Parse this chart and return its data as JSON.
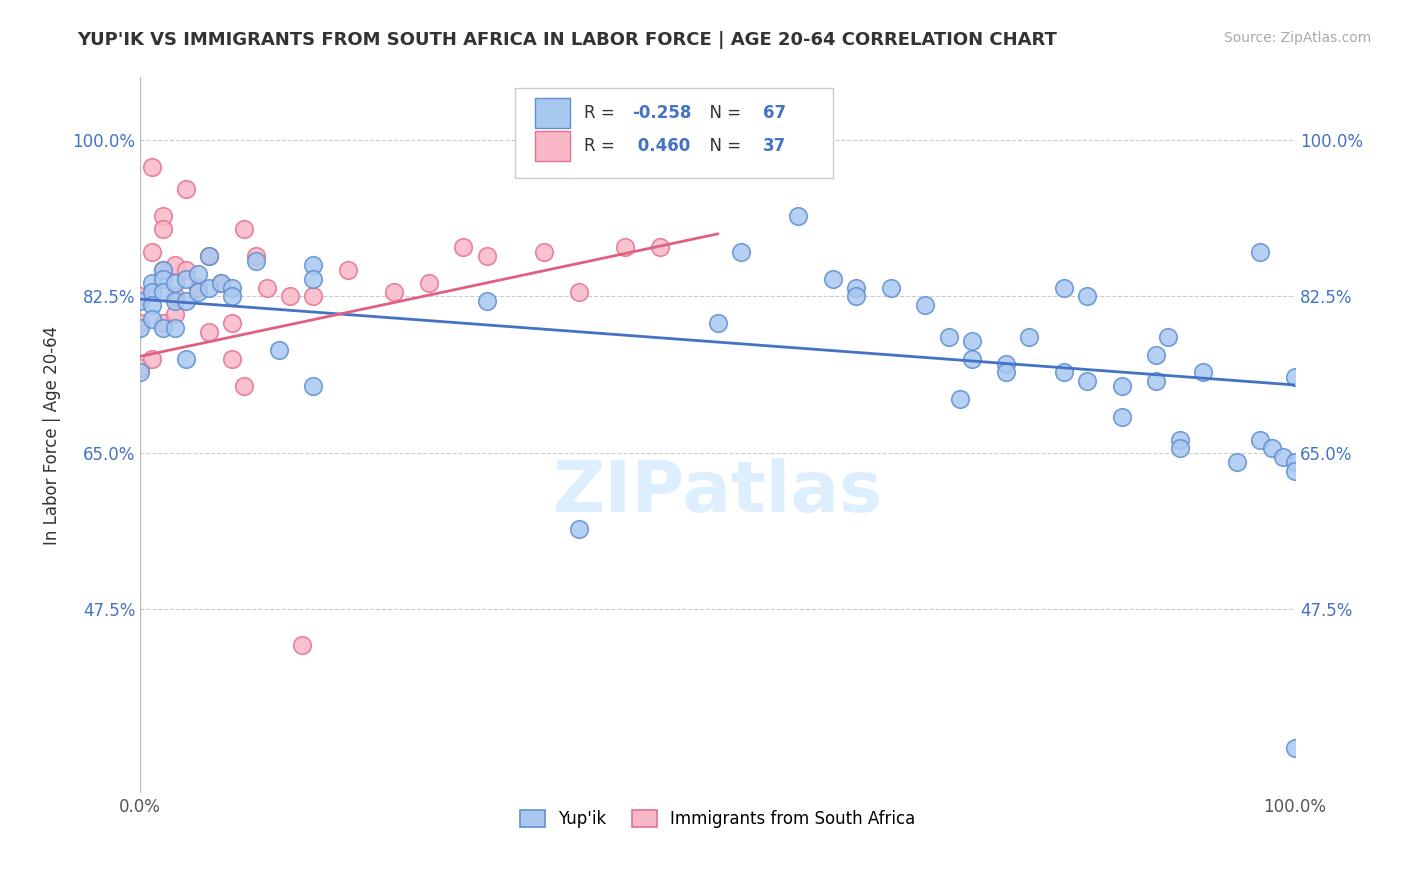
{
  "title": "YUP'IK VS IMMIGRANTS FROM SOUTH AFRICA IN LABOR FORCE | AGE 20-64 CORRELATION CHART",
  "source": "Source: ZipAtlas.com",
  "ylabel": "In Labor Force | Age 20-64",
  "xlim": [
    0.0,
    1.0
  ],
  "ylim": [
    0.27,
    1.07
  ],
  "yticks": [
    0.475,
    0.65,
    0.825,
    1.0
  ],
  "ytick_labels": [
    "47.5%",
    "65.0%",
    "82.5%",
    "100.0%"
  ],
  "xticks": [
    0.0,
    0.2,
    0.4,
    0.6,
    0.8,
    1.0
  ],
  "xtick_labels": [
    "0.0%",
    "",
    "",
    "",
    "",
    "100.0%"
  ],
  "blue_R": -0.258,
  "blue_N": 67,
  "pink_R": 0.46,
  "pink_N": 37,
  "blue_color": "#a8c8f0",
  "pink_color": "#f8b8c8",
  "blue_edge_color": "#6090d0",
  "pink_edge_color": "#e87090",
  "blue_line_color": "#4472c4",
  "pink_line_color": "#e06080",
  "watermark_color": "#ddeeff",
  "watermark": "ZIPatlas",
  "blue_scatter_x": [
    0.0,
    0.0,
    0.0,
    0.01,
    0.01,
    0.01,
    0.01,
    0.02,
    0.02,
    0.02,
    0.02,
    0.03,
    0.03,
    0.03,
    0.04,
    0.04,
    0.04,
    0.05,
    0.05,
    0.06,
    0.06,
    0.07,
    0.08,
    0.08,
    0.1,
    0.12,
    0.15,
    0.15,
    0.15,
    0.3,
    0.38,
    0.5,
    0.52,
    0.57,
    0.6,
    0.62,
    0.62,
    0.65,
    0.68,
    0.7,
    0.71,
    0.72,
    0.72,
    0.75,
    0.75,
    0.77,
    0.8,
    0.8,
    0.82,
    0.82,
    0.85,
    0.85,
    0.88,
    0.88,
    0.89,
    0.9,
    0.9,
    0.92,
    0.95,
    0.97,
    0.97,
    0.98,
    0.99,
    1.0,
    1.0,
    1.0,
    1.0
  ],
  "blue_scatter_y": [
    0.82,
    0.79,
    0.74,
    0.84,
    0.83,
    0.815,
    0.8,
    0.855,
    0.845,
    0.83,
    0.79,
    0.84,
    0.82,
    0.79,
    0.845,
    0.82,
    0.755,
    0.85,
    0.83,
    0.87,
    0.835,
    0.84,
    0.835,
    0.825,
    0.865,
    0.765,
    0.86,
    0.845,
    0.725,
    0.82,
    0.565,
    0.795,
    0.875,
    0.915,
    0.845,
    0.835,
    0.825,
    0.835,
    0.815,
    0.78,
    0.71,
    0.775,
    0.755,
    0.75,
    0.74,
    0.78,
    0.835,
    0.74,
    0.825,
    0.73,
    0.725,
    0.69,
    0.76,
    0.73,
    0.78,
    0.665,
    0.655,
    0.74,
    0.64,
    0.875,
    0.665,
    0.655,
    0.645,
    0.735,
    0.64,
    0.63,
    0.32
  ],
  "pink_scatter_x": [
    0.0,
    0.0,
    0.0,
    0.01,
    0.01,
    0.01,
    0.02,
    0.02,
    0.02,
    0.02,
    0.03,
    0.03,
    0.03,
    0.04,
    0.04,
    0.05,
    0.06,
    0.06,
    0.07,
    0.08,
    0.08,
    0.09,
    0.09,
    0.1,
    0.11,
    0.13,
    0.14,
    0.15,
    0.18,
    0.22,
    0.25,
    0.28,
    0.3,
    0.35,
    0.38,
    0.42,
    0.45
  ],
  "pink_scatter_y": [
    0.825,
    0.795,
    0.745,
    0.97,
    0.875,
    0.755,
    0.915,
    0.9,
    0.855,
    0.795,
    0.86,
    0.825,
    0.805,
    0.945,
    0.855,
    0.835,
    0.87,
    0.785,
    0.84,
    0.795,
    0.755,
    0.9,
    0.725,
    0.87,
    0.835,
    0.825,
    0.435,
    0.825,
    0.855,
    0.83,
    0.84,
    0.88,
    0.87,
    0.875,
    0.83,
    0.88,
    0.88
  ],
  "blue_line_x": [
    0.0,
    1.0
  ],
  "blue_line_y": [
    0.822,
    0.726
  ],
  "pink_line_x": [
    0.0,
    0.5
  ],
  "pink_line_y": [
    0.758,
    0.895
  ]
}
